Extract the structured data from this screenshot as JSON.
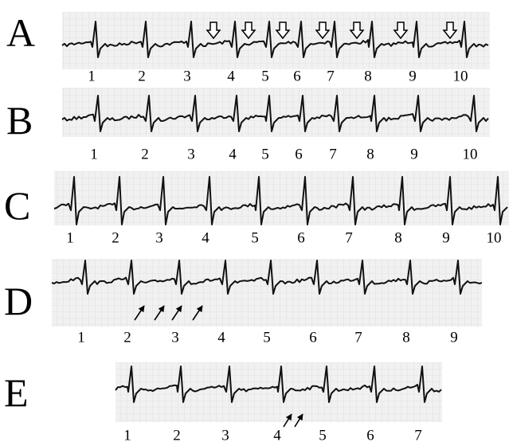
{
  "panels": [
    {
      "label": "A",
      "beats": [
        1,
        2,
        3,
        4,
        5,
        6,
        7,
        8,
        9,
        10
      ]
    },
    {
      "label": "B",
      "beats": [
        1,
        2,
        3,
        4,
        5,
        6,
        7,
        8,
        9,
        10
      ]
    },
    {
      "label": "C",
      "beats": [
        1,
        2,
        3,
        4,
        5,
        6,
        7,
        8,
        9,
        10
      ]
    },
    {
      "label": "D",
      "beats": [
        1,
        2,
        3,
        4,
        5,
        6,
        7,
        8,
        9
      ]
    },
    {
      "label": "E",
      "beats": [
        1,
        2,
        3,
        4,
        5,
        6,
        7
      ]
    }
  ]
}
